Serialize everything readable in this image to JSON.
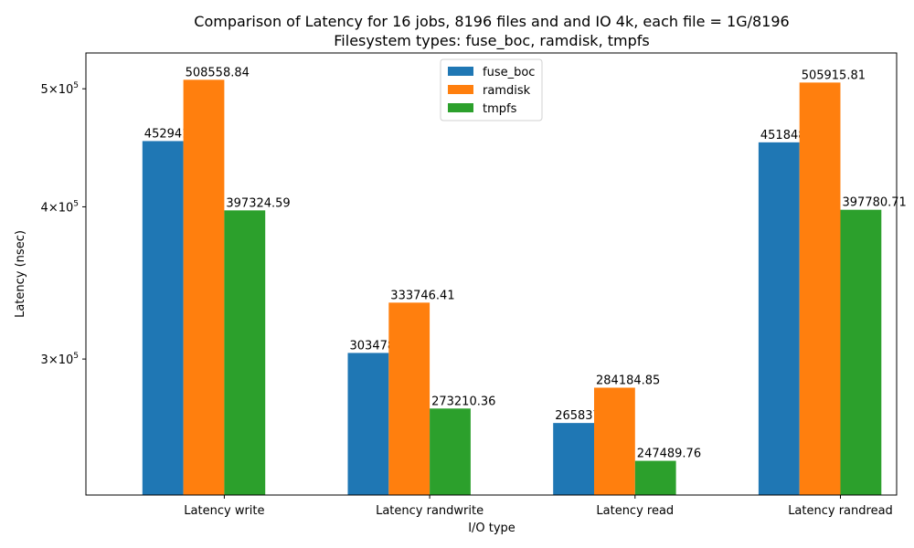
{
  "chart_data": {
    "type": "bar",
    "title_line1": "Comparison of Latency for 16 jobs, 8196 files and  and IO 4k, each file = 1G/8196",
    "title_line2": "Filesystem types: fuse_boc, ramdisk, tmpfs",
    "xlabel": "I/O type",
    "ylabel": "Latency (nsec)",
    "yscale": "log",
    "ylim": [
      232000,
      535000
    ],
    "yticks": [
      {
        "value": 300000,
        "mantissa": "3",
        "base": "×10",
        "exp": "5"
      },
      {
        "value": 400000,
        "mantissa": "4",
        "base": "×10",
        "exp": "5"
      },
      {
        "value": 500000,
        "mantissa": "5",
        "base": "×10",
        "exp": "5"
      }
    ],
    "categories": [
      "Latency write",
      "Latency randwrite",
      "Latency read",
      "Latency randread"
    ],
    "series": [
      {
        "name": "fuse_boc",
        "color": "#1f77b4",
        "values": [
          452941.72,
          303478.38,
          265837.31,
          451848.26
        ],
        "labels": [
          "452941.72",
          "303478.38",
          "265837.31",
          "451848.26"
        ]
      },
      {
        "name": "ramdisk",
        "color": "#ff7f0e",
        "values": [
          508558.84,
          333746.41,
          284184.85,
          505915.81
        ],
        "labels": [
          "508558.84",
          "333746.41",
          "284184.85",
          "505915.81"
        ]
      },
      {
        "name": "tmpfs",
        "color": "#2ca02c",
        "values": [
          397324.59,
          273210.36,
          247489.76,
          397780.71
        ],
        "labels": [
          "397324.59",
          "273210.36",
          "247489.76",
          "397780.71"
        ]
      }
    ],
    "legend": {
      "position": "top-center",
      "entries": [
        "fuse_boc",
        "ramdisk",
        "tmpfs"
      ]
    },
    "grid": false
  }
}
